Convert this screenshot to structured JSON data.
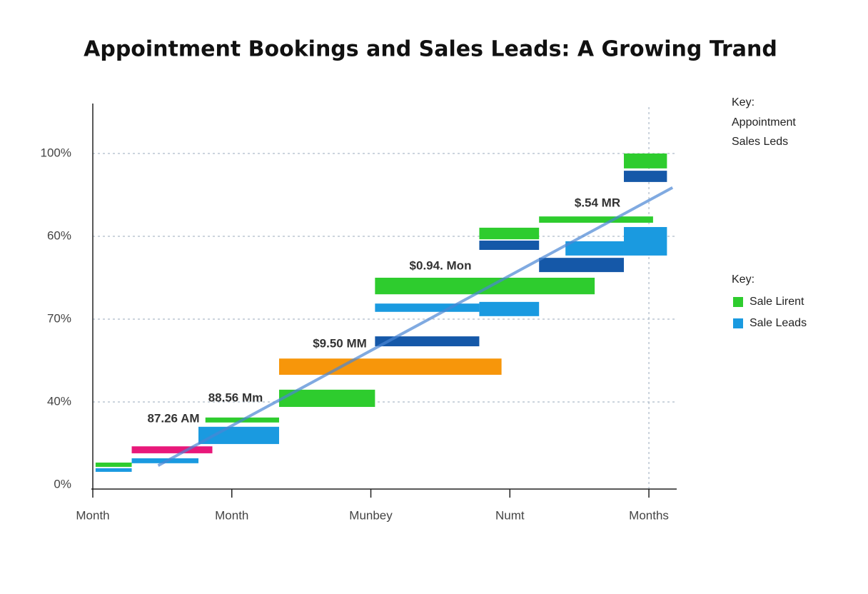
{
  "chart_data": {
    "type": "floating-bar",
    "title": "Appointment Bookings and Sales Leads: A Growing Trand",
    "xlim": [
      0,
      4.2
    ],
    "xticks": [
      {
        "value": 0,
        "label": "Month"
      },
      {
        "value": 1,
        "label": "Month"
      },
      {
        "value": 2,
        "label": "Munbey"
      },
      {
        "value": 3,
        "label": "Numt"
      },
      {
        "value": 4,
        "label": "Months"
      }
    ],
    "ylim": [
      0,
      100
    ],
    "y_axis_labels": [
      "0%",
      "40%",
      "70%",
      "60%",
      "100%"
    ],
    "grid": true,
    "series": [
      {
        "name": "Sale Lirent",
        "color": "#2ecc2e",
        "x_start": [
          0.02,
          0.81,
          1.34,
          2.03,
          2.78,
          3.21,
          3.82
        ],
        "x_end": [
          0.28,
          1.34,
          2.03,
          3.61,
          3.21,
          4.03,
          4.13
        ],
        "low": [
          5.4,
          18.8,
          23.5,
          57.5,
          74.1,
          79.1,
          95.5
        ],
        "high": [
          6.7,
          20.3,
          28.7,
          62.5,
          77.6,
          81.0,
          100
        ]
      },
      {
        "name": "Sale Leads",
        "color": "#1a9ae0",
        "x_start": [
          0.02,
          0.28,
          0.76,
          2.03,
          2.78,
          3.4,
          3.82,
          2.03,
          2.78,
          3.21,
          3.82
        ],
        "x_end": [
          0.28,
          0.76,
          1.34,
          2.78,
          3.21,
          3.82,
          4.13,
          2.78,
          3.21,
          3.82,
          4.13
        ],
        "low": [
          3.9,
          6.5,
          12.3,
          52.2,
          50.9,
          69.2,
          69.2,
          41.8,
          70.9,
          64.2,
          91.4
        ],
        "high": [
          5.0,
          8.0,
          17.5,
          54.7,
          55.2,
          73.5,
          77.8,
          44.8,
          73.7,
          68.5,
          94.8
        ],
        "bar_colors": [
          "#1a9ae0",
          "#1a9ae0",
          "#1a9ae0",
          "#1a9ae0",
          "#1a9ae0",
          "#1a9ae0",
          "#1a9ae0",
          "#1558a8",
          "#1558a8",
          "#1558a8",
          "#1558a8"
        ]
      }
    ],
    "extra_bars": {
      "x_start": [
        1.34,
        0.28
      ],
      "x_end": [
        2.94,
        0.86
      ],
      "low": [
        33.2,
        9.5
      ],
      "high": [
        38.1,
        11.6
      ],
      "colors": [
        "#f7960a",
        "#e8187a"
      ]
    },
    "trend": {
      "x": [
        0.47,
        4.17
      ],
      "y": [
        5.8,
        89.7
      ],
      "color": "#4a86d4"
    },
    "annotations": [
      "87.26 AM",
      "88.56 Mm",
      "$9.50 MM",
      "$0.94. Mon",
      "$.54 MR"
    ],
    "annotation_colors": [
      "#1a6fd0",
      "#e03020",
      "#22bb22",
      "#e03020",
      "#22bb22"
    ],
    "key_top": {
      "title": "Key:",
      "items": [
        "Appointment",
        "Sales Leds"
      ]
    },
    "legend_title": "Key:"
  }
}
